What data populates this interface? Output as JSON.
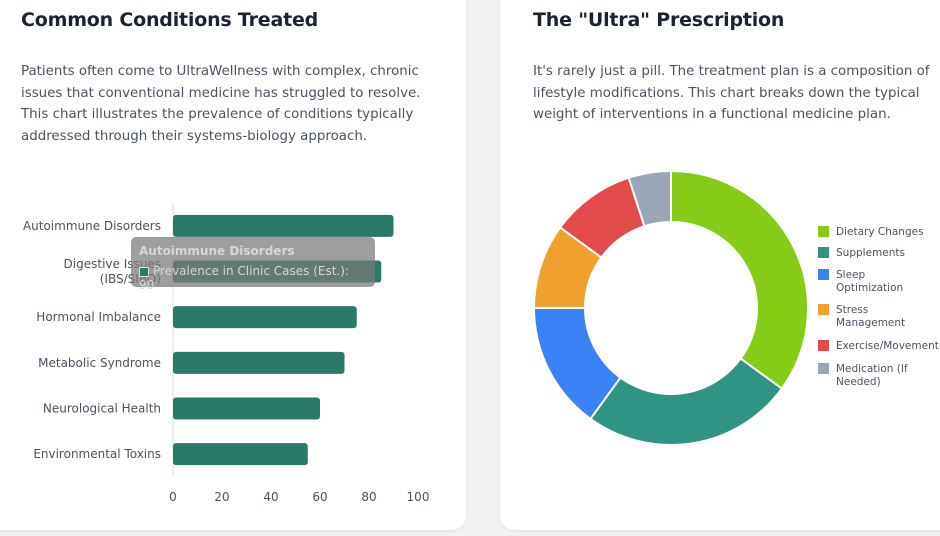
{
  "left": {
    "title": "Common Conditions Treated",
    "description": "Patients often come to UltraWellness with complex, chronic issues that conventional medicine has struggled to resolve. This chart illustrates the prevalence of conditions typically addressed through their systems-biology approach."
  },
  "right": {
    "title": "The \"Ultra\" Prescription",
    "description": "It's rarely just a pill. The treatment plan is a composition of lifestyle modifications. This chart breaks down the typical weight of interventions in a functional medicine plan."
  },
  "tooltip": {
    "title": "Autoimmune Disorders",
    "body": "Prevalence in Clinic Cases (Est.): 90"
  },
  "chart_data": [
    {
      "type": "bar",
      "orientation": "horizontal",
      "categories": [
        [
          "Autoimmune Disorders"
        ],
        [
          "Digestive Issues",
          "(IBS/SIBO)"
        ],
        [
          "Hormonal Imbalance"
        ],
        [
          "Metabolic Syndrome"
        ],
        [
          "Neurological Health"
        ],
        [
          "Environmental Toxins"
        ]
      ],
      "series": [
        {
          "name": "Prevalence in Clinic Cases (Est.)",
          "values": [
            90,
            85,
            75,
            70,
            60,
            55
          ]
        }
      ],
      "xlim": [
        0,
        100
      ],
      "xticks": [
        "0",
        "20",
        "40",
        "60",
        "80",
        "100"
      ],
      "color": "#2a7a69",
      "grid": false
    },
    {
      "type": "pie",
      "variant": "doughnut",
      "labels": [
        [
          "Dietary Changes"
        ],
        [
          "Supplements"
        ],
        [
          "Sleep",
          "Optimization"
        ],
        [
          "Stress",
          "Management"
        ],
        [
          "Exercise/Movement"
        ],
        [
          "Medication (If",
          "Needed)"
        ]
      ],
      "values": [
        35,
        25,
        15,
        10,
        10,
        5
      ],
      "colors": [
        "#84cc16",
        "#2f9483",
        "#3b82f6",
        "#f0a02c",
        "#e34b4b",
        "#9aa5b8"
      ],
      "legend_position": "right"
    }
  ]
}
